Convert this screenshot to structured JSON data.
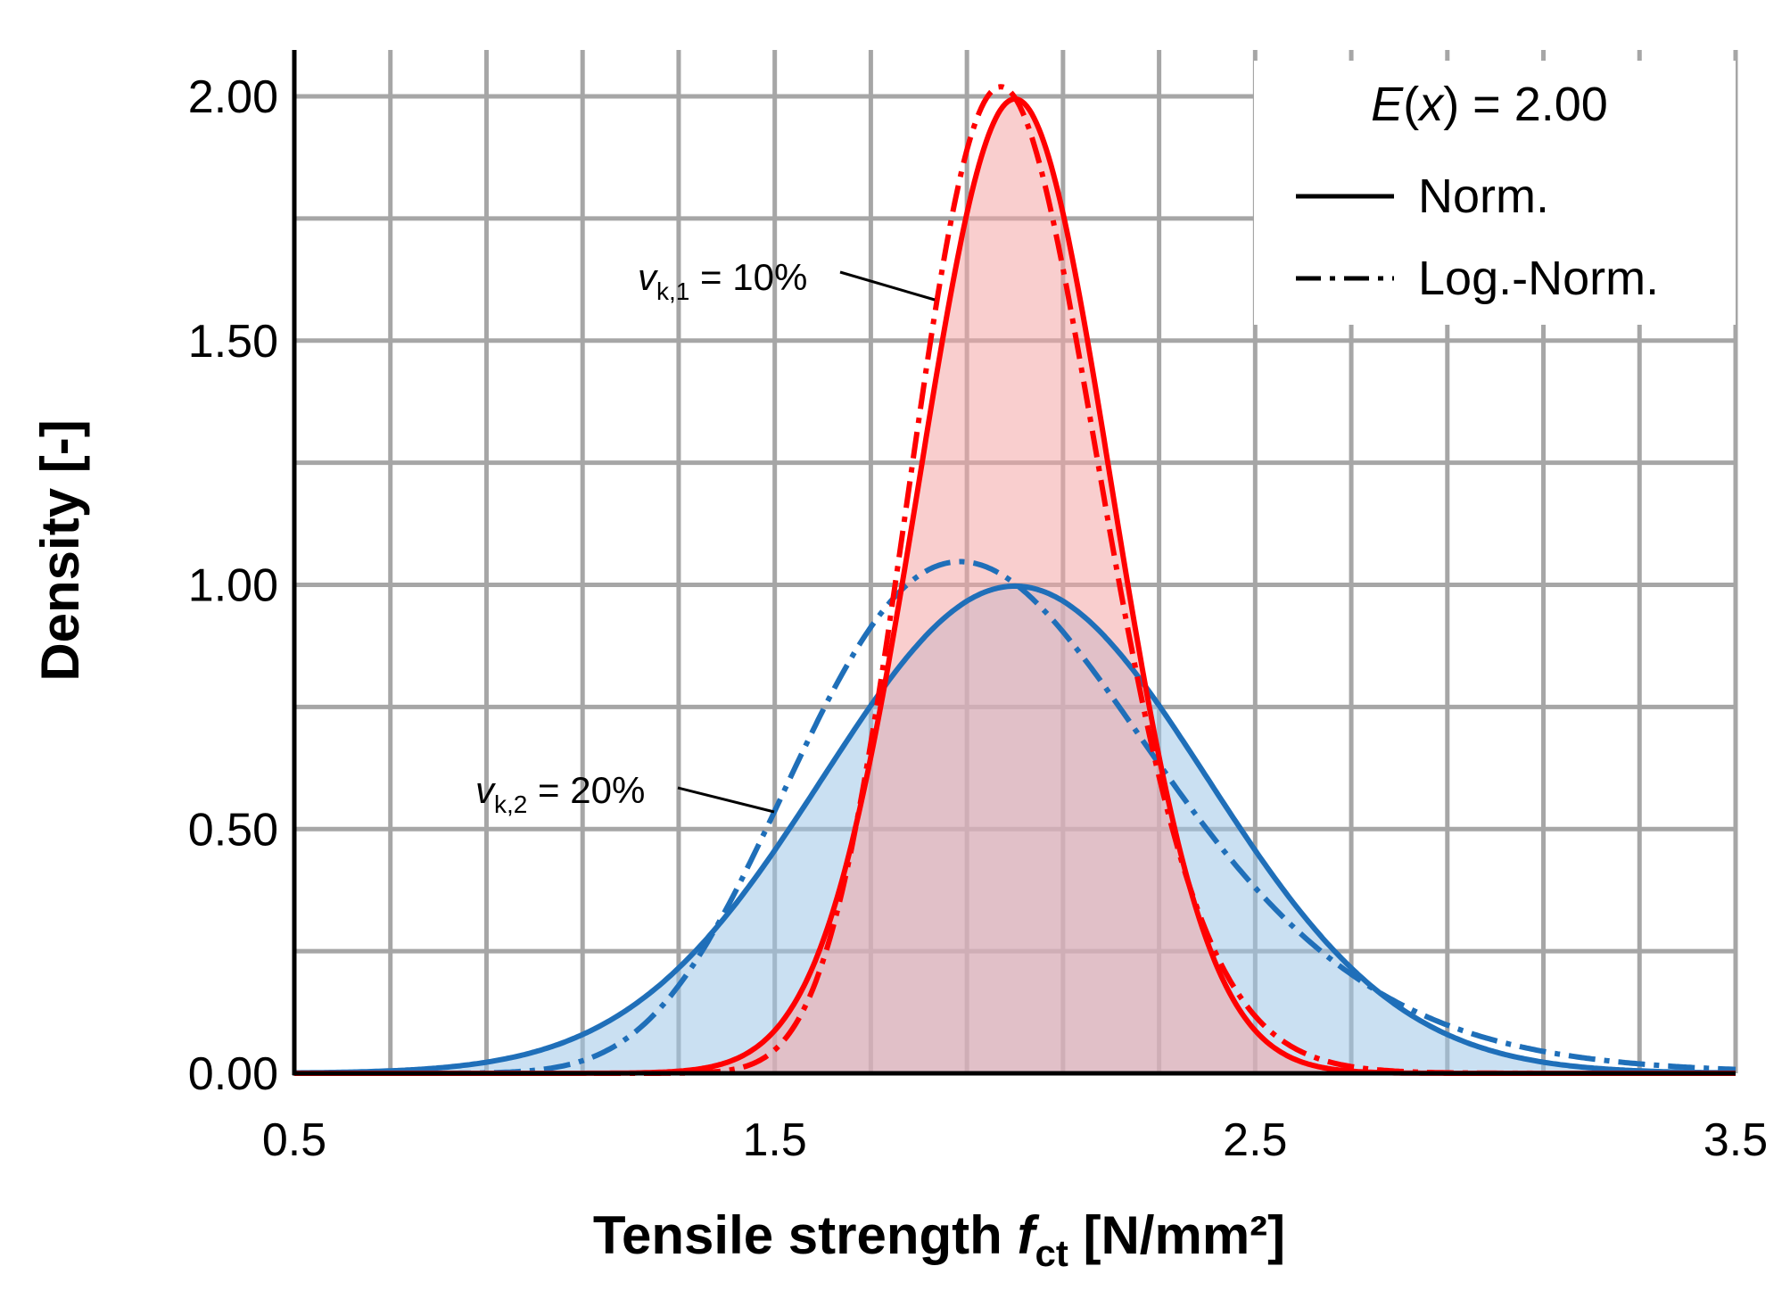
{
  "chart_data": {
    "type": "line",
    "title": "",
    "xlabel_main": "Tensile strength ",
    "xlabel_symbol": "f",
    "xlabel_subscript": "ct",
    "xlabel_unit": " [N/mm²]",
    "ylabel": "Density [-]",
    "xlim": [
      0.5,
      3.5
    ],
    "ylim": [
      0,
      2.0
    ],
    "x_ticks": [
      0.5,
      1.5,
      2.5,
      3.5
    ],
    "x_tick_labels": [
      "0.5",
      "1.5",
      "2.5",
      "3.5"
    ],
    "y_ticks": [
      0,
      0.5,
      1.0,
      1.5,
      2.0
    ],
    "y_tick_labels": [
      "0.00",
      "0.50",
      "1.00",
      "1.50",
      "2.00"
    ],
    "grid": true,
    "mean": 2.0,
    "series": [
      {
        "name": "Norm. vk,1 = 10%",
        "distribution": "normal",
        "cov": 0.1,
        "color": "#ff0000",
        "style": "solid",
        "filled": true,
        "fill_color": "#f4a6a6"
      },
      {
        "name": "Log.-Norm. vk,1 = 10%",
        "distribution": "lognormal",
        "cov": 0.1,
        "color": "#ff0000",
        "style": "dashdot",
        "filled": false
      },
      {
        "name": "Norm. vk,2 = 20%",
        "distribution": "normal",
        "cov": 0.2,
        "color": "#1f6fb9",
        "style": "solid",
        "filled": true,
        "fill_color": "#9fc7e8"
      },
      {
        "name": "Log.-Norm. vk,2 = 20%",
        "distribution": "lognormal",
        "cov": 0.2,
        "color": "#1f6fb9",
        "style": "dashdot",
        "filled": false
      }
    ],
    "legend": {
      "position": "top-right",
      "header_func": "E",
      "header_arg": "x",
      "header_value": " = 2.00",
      "entries": [
        {
          "label": "Norm.",
          "style": "solid"
        },
        {
          "label": "Log.-Norm.",
          "style": "dashdot"
        }
      ]
    },
    "annotations": [
      {
        "symbol": "v",
        "subscript": "k,1",
        "text": " = 10%",
        "target_series": 0
      },
      {
        "symbol": "v",
        "subscript": "k,2",
        "text": " = 20%",
        "target_series": 2
      }
    ]
  }
}
